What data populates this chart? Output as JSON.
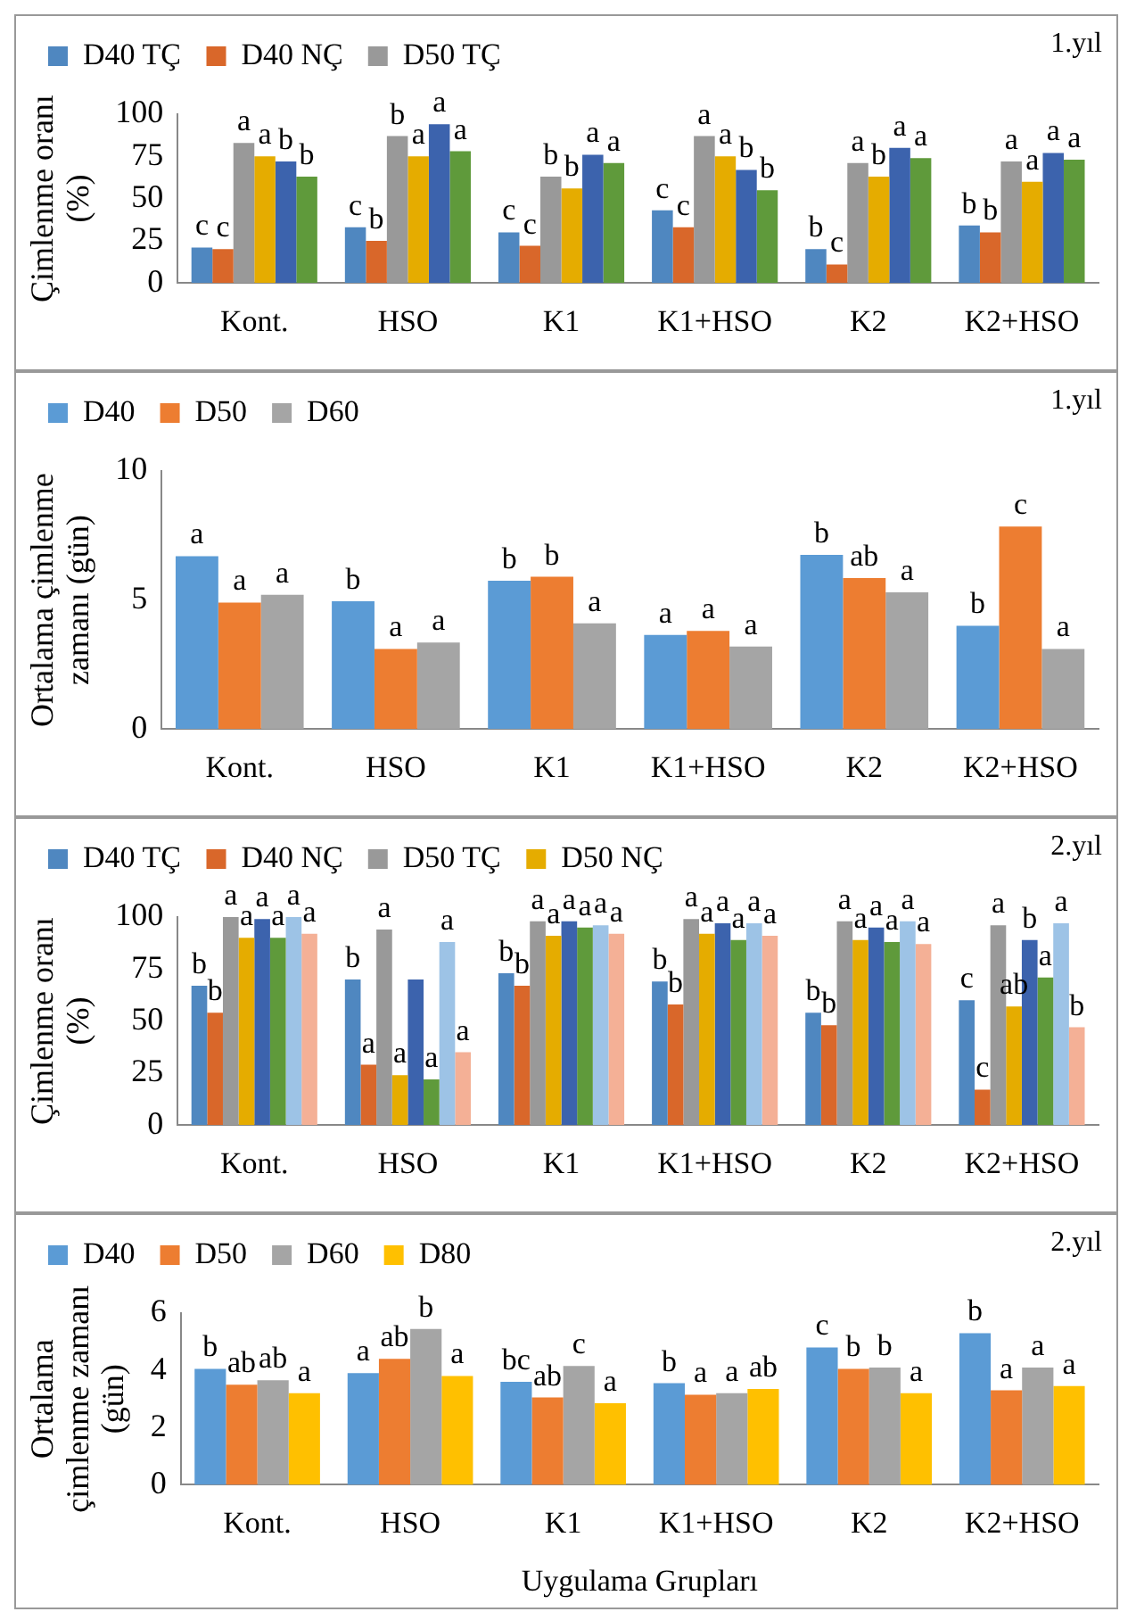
{
  "chart_data": [
    {
      "type": "bar",
      "ylabel": "Çimlenme oranı (%)",
      "categories": [
        "Kont.",
        "HSO",
        "K1",
        "K1+HSO",
        "K2",
        "K2+HSO"
      ],
      "ylim": [
        0,
        100
      ],
      "yticks": [
        0,
        25,
        50,
        75,
        100
      ],
      "legend": "top",
      "annotations": [
        "1.yıl"
      ],
      "series": [
        {
          "name": "D40 TÇ",
          "color": "#4f87c0",
          "values": [
            21,
            33,
            30,
            43,
            20,
            34
          ],
          "value_labels": [
            "c",
            "c",
            "c",
            "c",
            "b",
            "b"
          ]
        },
        {
          "name": "D40 NÇ",
          "color": "#d9672a",
          "values": [
            20,
            25,
            22,
            33,
            11,
            30
          ],
          "value_labels": [
            "c",
            "b",
            "c",
            "c",
            "c",
            "b"
          ]
        },
        {
          "name": "D50 TÇ",
          "color": "#999999",
          "values": [
            83,
            87,
            63,
            87,
            71,
            72
          ],
          "value_labels": [
            "a",
            "b",
            "b",
            "a",
            "a",
            "a"
          ]
        },
        {
          "color": "#e5ac00",
          "values": [
            75,
            75,
            56,
            75,
            63,
            60
          ],
          "value_labels": [
            "a",
            "a",
            "b",
            "a",
            "b",
            "a"
          ]
        },
        {
          "color": "#3c63ad",
          "values": [
            72,
            94,
            76,
            67,
            80,
            77
          ],
          "value_labels": [
            "b",
            "a",
            "a",
            "b",
            "a",
            "a"
          ]
        },
        {
          "color": "#5f9a3b",
          "values": [
            63,
            78,
            71,
            55,
            74,
            73
          ],
          "value_labels": [
            "b",
            "a",
            "a",
            "b",
            "a",
            "a"
          ]
        }
      ]
    },
    {
      "type": "bar",
      "ylabel": "Ortalama çimlenme zamanı (gün)",
      "categories": [
        "Kont.",
        "HSO",
        "K1",
        "K1+HSO",
        "K2",
        "K2+HSO"
      ],
      "ylim": [
        0,
        10
      ],
      "yticks": [
        0,
        5,
        10
      ],
      "legend": "top",
      "annotations": [
        "1.yıl"
      ],
      "series": [
        {
          "name": "D40",
          "color": "#5b9bd5",
          "values": [
            6.7,
            4.95,
            5.75,
            3.65,
            6.75,
            4.0
          ],
          "value_labels": [
            "a",
            "b",
            "b",
            "a",
            "b",
            "b"
          ]
        },
        {
          "name": "D50",
          "color": "#ed7d31",
          "values": [
            4.9,
            3.1,
            5.9,
            3.8,
            5.85,
            7.85
          ],
          "value_labels": [
            "a",
            "a",
            "b",
            "a",
            "ab",
            "c"
          ]
        },
        {
          "name": "D60",
          "color": "#a5a5a5",
          "values": [
            5.2,
            3.35,
            4.1,
            3.2,
            5.3,
            3.1
          ],
          "value_labels": [
            "a",
            "a",
            "a",
            "a",
            "a",
            "a"
          ]
        }
      ]
    },
    {
      "type": "bar",
      "ylabel": "Çimlenme oranı (%)",
      "categories": [
        "Kont.",
        "HSO",
        "K1",
        "K1+HSO",
        "K2",
        "K2+HSO"
      ],
      "ylim": [
        0,
        100
      ],
      "yticks": [
        0,
        25,
        50,
        75,
        100
      ],
      "legend": "top",
      "annotations": [
        "2.yıl"
      ],
      "series": [
        {
          "name": "D40 TÇ",
          "color": "#4f87c0",
          "values": [
            67,
            70,
            73,
            69,
            54,
            60
          ],
          "value_labels": [
            "b",
            "b",
            "b",
            "b",
            "b",
            "c"
          ]
        },
        {
          "name": "D40 NÇ",
          "color": "#d9672a",
          "values": [
            54,
            29,
            67,
            58,
            48,
            17
          ],
          "value_labels": [
            "b",
            "a",
            "b",
            "b",
            "b",
            "c"
          ]
        },
        {
          "name": "D50 TÇ",
          "color": "#999999",
          "values": [
            100,
            94,
            98,
            99,
            98,
            96
          ],
          "value_labels": [
            "a",
            "a",
            "a",
            "a",
            "a",
            "a"
          ]
        },
        {
          "name": "D50 NÇ",
          "color": "#e5ac00",
          "values": [
            90,
            24,
            91,
            92,
            89,
            57
          ],
          "value_labels": [
            "a",
            "a",
            "a",
            "a",
            "a",
            "ab"
          ]
        },
        {
          "color": "#3c63ad",
          "values": [
            99,
            70,
            98,
            97,
            95,
            89
          ],
          "value_labels": [
            "a",
            null,
            "a",
            "a",
            "a",
            "b"
          ]
        },
        {
          "color": "#5f9a3b",
          "values": [
            90,
            22,
            95,
            89,
            88,
            71
          ],
          "value_labels": [
            "a",
            "a",
            "a",
            "a",
            "a",
            "a"
          ]
        },
        {
          "color": "#9dc3e6",
          "values": [
            100,
            88,
            96,
            97,
            98,
            97
          ],
          "value_labels": [
            "a",
            "a",
            "a",
            "a",
            "a",
            "a"
          ]
        },
        {
          "color": "#f4b096",
          "values": [
            92,
            35,
            92,
            91,
            87,
            47
          ],
          "value_labels": [
            "a",
            "a",
            "a",
            "a",
            "a",
            "b"
          ]
        }
      ]
    },
    {
      "type": "bar",
      "ylabel": "Ortalama çimlenme zamanı (gün)",
      "xlabel": "Uygulama Grupları",
      "categories": [
        "Kont.",
        "HSO",
        "K1",
        "K1+HSO",
        "K2",
        "K2+HSO"
      ],
      "ylim": [
        0,
        6
      ],
      "yticks": [
        0,
        2,
        4,
        6
      ],
      "legend": "top",
      "annotations": [
        "2.yıl"
      ],
      "series": [
        {
          "name": "D40",
          "color": "#5b9bd5",
          "values": [
            4.05,
            3.9,
            3.6,
            3.55,
            4.8,
            5.3
          ],
          "value_labels": [
            "b",
            "a",
            "bc",
            "b",
            "c",
            "b"
          ]
        },
        {
          "name": "D50",
          "color": "#ed7d31",
          "values": [
            3.5,
            4.4,
            3.05,
            3.15,
            4.05,
            3.3
          ],
          "value_labels": [
            "ab",
            "ab",
            "ab",
            "a",
            "b",
            "a"
          ]
        },
        {
          "name": "D60",
          "color": "#a5a5a5",
          "values": [
            3.65,
            5.45,
            4.15,
            3.2,
            4.1,
            4.1
          ],
          "value_labels": [
            "ab",
            "b",
            "c",
            "a",
            "b",
            "a"
          ]
        },
        {
          "name": "D80",
          "color": "#ffc000",
          "values": [
            3.2,
            3.8,
            2.85,
            3.35,
            3.2,
            3.45
          ],
          "value_labels": [
            "a",
            "a",
            "a",
            "ab",
            "a",
            "a"
          ]
        }
      ]
    }
  ]
}
